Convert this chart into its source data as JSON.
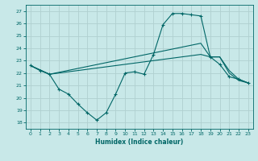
{
  "xlabel": "Humidex (Indice chaleur)",
  "background_color": "#c8e8e8",
  "grid_color": "#b0d0d0",
  "line_color": "#006666",
  "xlim": [
    -0.5,
    23.5
  ],
  "ylim": [
    17.5,
    27.5
  ],
  "xticks": [
    0,
    1,
    2,
    3,
    4,
    5,
    6,
    7,
    8,
    9,
    10,
    11,
    12,
    13,
    14,
    15,
    16,
    17,
    18,
    19,
    20,
    21,
    22,
    23
  ],
  "yticks": [
    18,
    19,
    20,
    21,
    22,
    23,
    24,
    25,
    26,
    27
  ],
  "line1_x": [
    0,
    1,
    2,
    3,
    4,
    5,
    6,
    7,
    8,
    9,
    10,
    11,
    12,
    13,
    14,
    15,
    16,
    17,
    18,
    19,
    20,
    21,
    22,
    23
  ],
  "line1_y": [
    22.6,
    22.2,
    21.9,
    20.7,
    20.3,
    19.5,
    18.8,
    18.2,
    18.8,
    20.3,
    22.0,
    22.1,
    21.9,
    23.5,
    25.9,
    26.8,
    26.8,
    26.7,
    26.6,
    23.3,
    22.7,
    21.7,
    21.5,
    21.2
  ],
  "line2_x": [
    0,
    2,
    18,
    19,
    20,
    21,
    22,
    23
  ],
  "line2_y": [
    22.6,
    21.9,
    24.4,
    23.3,
    23.3,
    22.2,
    21.5,
    21.2
  ],
  "line3_x": [
    0,
    2,
    18,
    19,
    20,
    21,
    22,
    23
  ],
  "line3_y": [
    22.6,
    21.9,
    23.5,
    23.3,
    23.3,
    22.0,
    21.4,
    21.2
  ]
}
